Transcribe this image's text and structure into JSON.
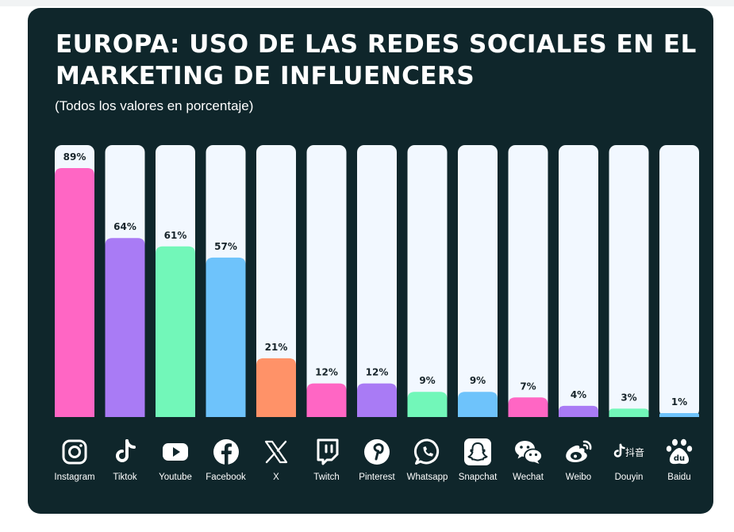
{
  "header": {
    "title": "EUROPA: USO DE LAS REDES SOCIALES EN EL MARKETING DE INFLUENCERS",
    "subtitle": "(Todos los valores en porcentaje)"
  },
  "chart_data": {
    "type": "bar",
    "categories": [
      "Instagram",
      "Tiktok",
      "Youtube",
      "Facebook",
      "X",
      "Twitch",
      "Pinterest",
      "Whatsapp",
      "Snapchat",
      "Wechat",
      "Weibo",
      "Douyin",
      "Baidu"
    ],
    "values": [
      89,
      64,
      61,
      57,
      21,
      12,
      12,
      9,
      9,
      7,
      4,
      3,
      1
    ],
    "data_labels": [
      "89%",
      "64%",
      "61%",
      "57%",
      "21%",
      "12%",
      "12%",
      "9%",
      "9%",
      "7%",
      "4%",
      "3%",
      "1%"
    ],
    "colors": [
      "#ff66c4",
      "#a97bf5",
      "#72f7b9",
      "#6ec3fb",
      "#ff9268",
      "#ff66c4",
      "#a97bf5",
      "#72f7b9",
      "#6ec3fb",
      "#ff66c4",
      "#a97bf5",
      "#72f7b9",
      "#6ec3fb"
    ],
    "track_color": "#f2f8ff",
    "ylim": [
      0,
      100
    ],
    "grid": false,
    "legend": "none"
  },
  "platforms": [
    {
      "label": "Instagram",
      "icon": "instagram-icon"
    },
    {
      "label": "Tiktok",
      "icon": "tiktok-icon"
    },
    {
      "label": "Youtube",
      "icon": "youtube-icon"
    },
    {
      "label": "Facebook",
      "icon": "facebook-icon"
    },
    {
      "label": "X",
      "icon": "x-icon"
    },
    {
      "label": "Twitch",
      "icon": "twitch-icon"
    },
    {
      "label": "Pinterest",
      "icon": "pinterest-icon"
    },
    {
      "label": "Whatsapp",
      "icon": "whatsapp-icon"
    },
    {
      "label": "Snapchat",
      "icon": "snapchat-icon"
    },
    {
      "label": "Wechat",
      "icon": "wechat-icon"
    },
    {
      "label": "Weibo",
      "icon": "weibo-icon"
    },
    {
      "label": "Douyin",
      "icon": "douyin-icon"
    },
    {
      "label": "Baidu",
      "icon": "baidu-icon"
    }
  ],
  "douyin_icon_text": "抖音",
  "baidu_icon_text": "du",
  "theme": {
    "background": "#0f262b",
    "text": "#ffffff"
  }
}
